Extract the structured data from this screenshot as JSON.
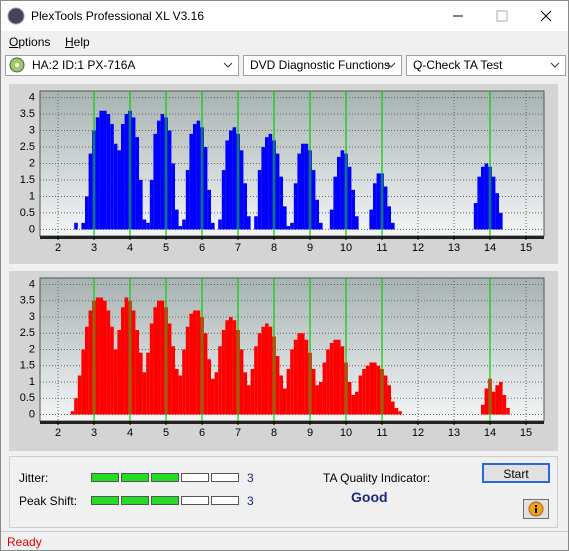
{
  "window": {
    "title": "PlexTools Professional XL V3.16"
  },
  "menu": [
    "Options",
    "Help"
  ],
  "toolbar": {
    "drive": "HA:2 ID:1  PX-716A",
    "function": "DVD Diagnostic Functions",
    "test": "Q-Check TA Test"
  },
  "chart_data": [
    {
      "type": "bar",
      "color": "#0000ff",
      "x": [
        2.4,
        2.5,
        2.6,
        2.7,
        2.8,
        2.9,
        3.0,
        3.1,
        3.2,
        3.3,
        3.4,
        3.5,
        3.6,
        3.7,
        3.8,
        3.9,
        4.0,
        4.1,
        4.2,
        4.3,
        4.4,
        4.5,
        4.6,
        4.7,
        4.8,
        4.9,
        5.0,
        5.1,
        5.2,
        5.3,
        5.4,
        5.5,
        5.6,
        5.7,
        5.8,
        5.9,
        6.0,
        6.1,
        6.2,
        6.3,
        6.4,
        6.5,
        6.6,
        6.7,
        6.8,
        6.9,
        7.0,
        7.1,
        7.2,
        7.3,
        7.4,
        7.5,
        7.6,
        7.7,
        7.8,
        7.9,
        8.0,
        8.1,
        8.2,
        8.3,
        8.4,
        8.5,
        8.6,
        8.7,
        8.8,
        8.9,
        9.0,
        9.1,
        9.2,
        9.3,
        9.4,
        9.5,
        9.6,
        9.7,
        9.8,
        9.9,
        10.0,
        10.1,
        10.2,
        10.3,
        10.4,
        10.5,
        10.6,
        10.7,
        10.8,
        10.9,
        11.0,
        11.1,
        11.2,
        11.3,
        11.4,
        11.5,
        11.6,
        11.7,
        11.8,
        11.9,
        12.0,
        12.1,
        12.2,
        12.3,
        12.4,
        12.5,
        12.6,
        12.7,
        12.8,
        12.9,
        13.0,
        13.1,
        13.2,
        13.3,
        13.4,
        13.5,
        13.6,
        13.7,
        13.8,
        13.9,
        14.0,
        14.1,
        14.2,
        14.3,
        14.4,
        14.5,
        14.6
      ],
      "values": [
        0,
        0.2,
        0,
        0.2,
        1.0,
        2.3,
        3.0,
        3.4,
        3.6,
        3.6,
        3.5,
        3.2,
        2.6,
        2.4,
        3.2,
        3.5,
        3.6,
        3.4,
        2.8,
        1.5,
        0.3,
        0.2,
        1.5,
        2.9,
        3.3,
        3.5,
        3.4,
        3.0,
        2.0,
        0.6,
        0.1,
        0.3,
        1.8,
        2.9,
        3.2,
        3.3,
        3.1,
        2.5,
        1.2,
        0.2,
        0,
        0.3,
        1.8,
        2.7,
        3.0,
        3.1,
        2.9,
        2.4,
        1.4,
        0.4,
        0,
        0.4,
        1.8,
        2.5,
        2.8,
        2.9,
        2.7,
        2.3,
        1.6,
        0.7,
        0.1,
        0.2,
        1.4,
        2.3,
        2.6,
        2.6,
        2.4,
        1.8,
        0.9,
        0.2,
        0,
        0,
        0.6,
        1.6,
        2.2,
        2.4,
        2.3,
        1.9,
        1.2,
        0.4,
        0,
        0,
        0,
        0.6,
        1.4,
        1.7,
        1.7,
        1.3,
        0.7,
        0.2,
        0,
        0,
        0,
        0,
        0,
        0,
        0,
        0,
        0,
        0,
        0,
        0,
        0,
        0,
        0,
        0,
        0,
        0,
        0,
        0,
        0,
        0,
        0.8,
        1.6,
        1.9,
        2.0,
        1.9,
        1.6,
        1.1,
        0.5,
        0,
        0,
        0
      ],
      "xlim": [
        1.5,
        15.5
      ],
      "ylim": [
        -0.2,
        4.2
      ],
      "xticks": [
        2,
        3,
        4,
        5,
        6,
        7,
        8,
        9,
        10,
        11,
        12,
        13,
        14,
        15
      ],
      "yticks": [
        0,
        0.5,
        1,
        1.5,
        2,
        2.5,
        3,
        3.5,
        4
      ],
      "markers": [
        3,
        4,
        5,
        6,
        7,
        8,
        9,
        10,
        11,
        14
      ],
      "marker_color": "#00d000",
      "grid": true
    },
    {
      "type": "bar",
      "color": "#ff0000",
      "x": [
        2.4,
        2.5,
        2.6,
        2.7,
        2.8,
        2.9,
        3.0,
        3.1,
        3.2,
        3.3,
        3.4,
        3.5,
        3.6,
        3.7,
        3.8,
        3.9,
        4.0,
        4.1,
        4.2,
        4.3,
        4.4,
        4.5,
        4.6,
        4.7,
        4.8,
        4.9,
        5.0,
        5.1,
        5.2,
        5.3,
        5.4,
        5.5,
        5.6,
        5.7,
        5.8,
        5.9,
        6.0,
        6.1,
        6.2,
        6.3,
        6.4,
        6.5,
        6.6,
        6.7,
        6.8,
        6.9,
        7.0,
        7.1,
        7.2,
        7.3,
        7.4,
        7.5,
        7.6,
        7.7,
        7.8,
        7.9,
        8.0,
        8.1,
        8.2,
        8.3,
        8.4,
        8.5,
        8.6,
        8.7,
        8.8,
        8.9,
        9.0,
        9.1,
        9.2,
        9.3,
        9.4,
        9.5,
        9.6,
        9.7,
        9.8,
        9.9,
        10.0,
        10.1,
        10.2,
        10.3,
        10.4,
        10.5,
        10.6,
        10.7,
        10.8,
        10.9,
        11.0,
        11.1,
        11.2,
        11.3,
        11.4,
        11.5,
        11.6,
        11.7,
        11.8,
        11.9,
        12.0,
        12.1,
        12.2,
        12.3,
        12.4,
        12.5,
        12.6,
        12.7,
        12.8,
        12.9,
        13.0,
        13.1,
        13.2,
        13.3,
        13.4,
        13.5,
        13.6,
        13.7,
        13.8,
        13.9,
        14.0,
        14.1,
        14.2,
        14.3,
        14.4,
        14.5,
        14.6
      ],
      "values": [
        0.1,
        0.5,
        1.2,
        2.0,
        2.7,
        3.2,
        3.5,
        3.6,
        3.6,
        3.5,
        3.2,
        2.7,
        2.0,
        2.6,
        3.3,
        3.6,
        3.5,
        3.2,
        2.6,
        1.9,
        1.3,
        1.9,
        2.8,
        3.3,
        3.5,
        3.5,
        3.3,
        2.8,
        2.1,
        1.4,
        1.2,
        2.0,
        2.7,
        3.1,
        3.2,
        3.2,
        3.0,
        2.5,
        1.7,
        1.1,
        1.3,
        2.1,
        2.6,
        2.9,
        3.0,
        2.9,
        2.6,
        2.0,
        1.3,
        0.9,
        1.4,
        2.1,
        2.5,
        2.7,
        2.8,
        2.7,
        2.4,
        1.8,
        1.2,
        0.8,
        1.4,
        2.0,
        2.3,
        2.5,
        2.5,
        2.3,
        1.9,
        1.4,
        0.9,
        1.0,
        1.6,
        2.0,
        2.2,
        2.3,
        2.3,
        2.1,
        1.6,
        1.0,
        0.6,
        0.7,
        1.2,
        1.4,
        1.5,
        1.6,
        1.6,
        1.5,
        1.4,
        1.2,
        0.9,
        0.4,
        0.2,
        0.1,
        0,
        0,
        0,
        0,
        0,
        0,
        0,
        0,
        0,
        0,
        0,
        0,
        0,
        0,
        0,
        0,
        0,
        0,
        0,
        0,
        0,
        0,
        0.3,
        0.8,
        1.1,
        0.7,
        0.9,
        1.0,
        0.6,
        0.2,
        0
      ],
      "xlim": [
        1.5,
        15.5
      ],
      "ylim": [
        -0.2,
        4.2
      ],
      "xticks": [
        2,
        3,
        4,
        5,
        6,
        7,
        8,
        9,
        10,
        11,
        12,
        13,
        14,
        15
      ],
      "yticks": [
        0,
        0.5,
        1,
        1.5,
        2,
        2.5,
        3,
        3.5,
        4
      ],
      "markers": [
        3,
        4,
        5,
        6,
        7,
        8,
        9,
        10,
        11,
        14
      ],
      "marker_color": "#00d000",
      "grid": true
    }
  ],
  "indicators": [
    {
      "label": "Jitter:",
      "value": 3
    },
    {
      "label": "Peak Shift:",
      "value": 3
    }
  ],
  "quality": {
    "label": "TA Quality Indicator:",
    "value": "Good"
  },
  "buttons": {
    "start": "Start"
  },
  "status": "Ready"
}
